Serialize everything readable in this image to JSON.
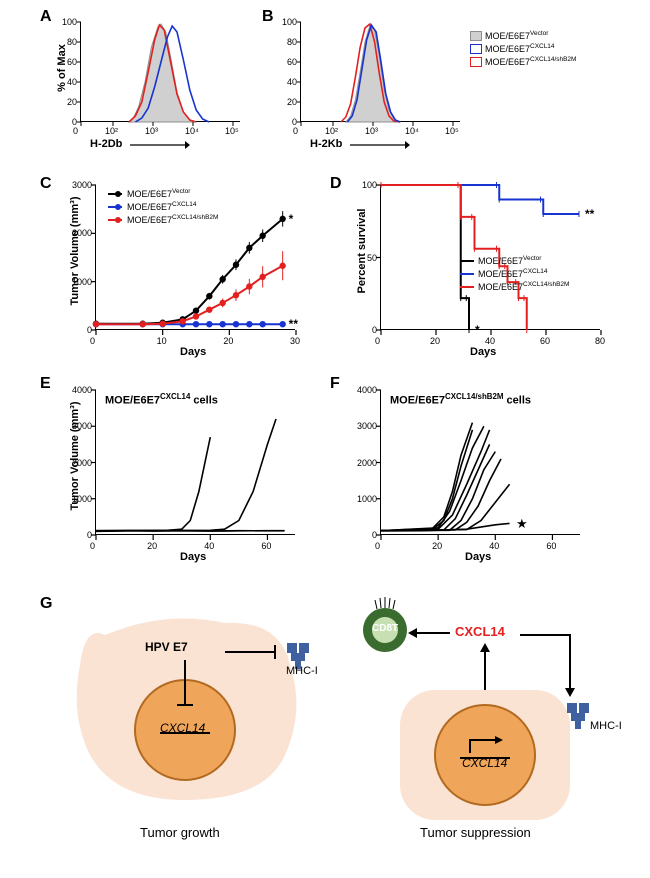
{
  "panels": {
    "A": {
      "label": "A",
      "x_label": "H-2Db",
      "y_label": "% of Max"
    },
    "B": {
      "label": "B",
      "x_label": "H-2Kb",
      "y_label": "% of Max"
    },
    "C": {
      "label": "C",
      "x_label": "Days",
      "y_label": "Tumor Volume (mm³)"
    },
    "D": {
      "label": "D",
      "x_label": "Days",
      "y_label": "Percent survival"
    },
    "E": {
      "label": "E",
      "x_label": "Days",
      "y_label": "Tumor Volume (mm³)",
      "title": "MOE/E6E7",
      "title_sup": "CXCL14",
      "title_suffix": " cells"
    },
    "F": {
      "label": "F",
      "x_label": "Days",
      "y_label": "Tumor Volume (mm³)",
      "title": "MOE/E6E7",
      "title_sup": "CXCL14/shB2M",
      "title_suffix": " cells"
    },
    "G": {
      "label": "G",
      "left_caption": "Tumor growth",
      "right_caption": "Tumor suppression"
    }
  },
  "legend": {
    "vector": {
      "text": "MOE/E6E7",
      "sup": "Vector",
      "color": "#a9a9a9",
      "line_color": "#000000"
    },
    "cxcl14": {
      "text": "MOE/E6E7",
      "sup": "CXCL14",
      "color": "#ffffff",
      "line_color": "#1733d1"
    },
    "shb2m": {
      "text": "MOE/E6E7",
      "sup": "CXCL14/shB2M",
      "color": "#ffffff",
      "line_color": "#e22020"
    }
  },
  "histogram": {
    "A": {
      "x_ticks": [
        "0",
        "10²",
        "10³",
        "10⁴",
        "10⁵"
      ],
      "y_ticks": [
        0,
        20,
        40,
        60,
        80,
        100
      ],
      "curves": {
        "vector": {
          "fill": "#d0d0d0",
          "stroke": "#8e8e8e",
          "pts": [
            [
              0.3,
              0
            ],
            [
              0.33,
              5
            ],
            [
              0.36,
              15
            ],
            [
              0.4,
              40
            ],
            [
              0.44,
              75
            ],
            [
              0.48,
              95
            ],
            [
              0.5,
              98
            ],
            [
              0.53,
              90
            ],
            [
              0.56,
              65
            ],
            [
              0.6,
              30
            ],
            [
              0.64,
              10
            ],
            [
              0.68,
              2
            ],
            [
              0.72,
              0
            ]
          ]
        },
        "shb2m": {
          "stroke": "#e22020",
          "pts": [
            [
              0.3,
              0
            ],
            [
              0.34,
              6
            ],
            [
              0.38,
              20
            ],
            [
              0.42,
              50
            ],
            [
              0.46,
              82
            ],
            [
              0.49,
              97
            ],
            [
              0.52,
              92
            ],
            [
              0.56,
              60
            ],
            [
              0.6,
              28
            ],
            [
              0.64,
              10
            ],
            [
              0.68,
              2
            ],
            [
              0.72,
              0
            ]
          ]
        },
        "cxcl14": {
          "stroke": "#1733d1",
          "pts": [
            [
              0.34,
              0
            ],
            [
              0.38,
              4
            ],
            [
              0.42,
              14
            ],
            [
              0.46,
              35
            ],
            [
              0.5,
              60
            ],
            [
              0.54,
              85
            ],
            [
              0.57,
              96
            ],
            [
              0.6,
              90
            ],
            [
              0.64,
              62
            ],
            [
              0.68,
              32
            ],
            [
              0.72,
              12
            ],
            [
              0.76,
              3
            ],
            [
              0.8,
              0
            ]
          ]
        }
      }
    },
    "B": {
      "x_ticks": [
        "0",
        "10²",
        "10³",
        "10⁴",
        "10⁵"
      ],
      "y_ticks": [
        0,
        20,
        40,
        60,
        80,
        100
      ],
      "curves": {
        "vector": {
          "fill": "#d0d0d0",
          "stroke": "#8e8e8e",
          "pts": [
            [
              0.28,
              0
            ],
            [
              0.31,
              6
            ],
            [
              0.34,
              22
            ],
            [
              0.37,
              50
            ],
            [
              0.4,
              80
            ],
            [
              0.43,
              96
            ],
            [
              0.46,
              92
            ],
            [
              0.49,
              65
            ],
            [
              0.52,
              32
            ],
            [
              0.55,
              12
            ],
            [
              0.58,
              3
            ],
            [
              0.62,
              0
            ]
          ]
        },
        "shb2m": {
          "stroke": "#e22020",
          "pts": [
            [
              0.25,
              0
            ],
            [
              0.28,
              5
            ],
            [
              0.31,
              18
            ],
            [
              0.34,
              45
            ],
            [
              0.37,
              75
            ],
            [
              0.4,
              94
            ],
            [
              0.43,
              98
            ],
            [
              0.46,
              80
            ],
            [
              0.49,
              48
            ],
            [
              0.52,
              20
            ],
            [
              0.55,
              6
            ],
            [
              0.58,
              1
            ],
            [
              0.62,
              0
            ]
          ]
        },
        "cxcl14": {
          "stroke": "#1733d1",
          "pts": [
            [
              0.29,
              0
            ],
            [
              0.32,
              6
            ],
            [
              0.35,
              22
            ],
            [
              0.38,
              52
            ],
            [
              0.41,
              82
            ],
            [
              0.44,
              97
            ],
            [
              0.47,
              90
            ],
            [
              0.5,
              60
            ],
            [
              0.53,
              28
            ],
            [
              0.56,
              10
            ],
            [
              0.59,
              2
            ],
            [
              0.62,
              0
            ]
          ]
        }
      }
    }
  },
  "chartC": {
    "xlim": [
      0,
      30
    ],
    "ylim": [
      0,
      3000
    ],
    "x_ticks": [
      0,
      10,
      20,
      30
    ],
    "y_ticks": [
      0,
      1000,
      2000,
      3000
    ],
    "series": {
      "vector": {
        "color": "#000000",
        "pts": [
          [
            0,
            130
          ],
          [
            7,
            130
          ],
          [
            10,
            150
          ],
          [
            13,
            220
          ],
          [
            15,
            400
          ],
          [
            17,
            700
          ],
          [
            19,
            1050
          ],
          [
            21,
            1350
          ],
          [
            23,
            1700
          ],
          [
            25,
            1950
          ],
          [
            28,
            2300
          ]
        ],
        "err": [
          0,
          0,
          0,
          20,
          40,
          70,
          90,
          110,
          120,
          130,
          160
        ],
        "sig": "*"
      },
      "cxcl14": {
        "color": "#1733d1",
        "pts": [
          [
            0,
            120
          ],
          [
            7,
            120
          ],
          [
            10,
            120
          ],
          [
            13,
            120
          ],
          [
            15,
            120
          ],
          [
            17,
            120
          ],
          [
            19,
            120
          ],
          [
            21,
            120
          ],
          [
            23,
            120
          ],
          [
            25,
            120
          ],
          [
            28,
            120
          ]
        ],
        "err": [
          0,
          0,
          0,
          0,
          0,
          0,
          0,
          0,
          0,
          0,
          0
        ],
        "sig": "**"
      },
      "shb2m": {
        "color": "#e22020",
        "pts": [
          [
            0,
            120
          ],
          [
            7,
            120
          ],
          [
            10,
            130
          ],
          [
            13,
            180
          ],
          [
            15,
            280
          ],
          [
            17,
            420
          ],
          [
            19,
            560
          ],
          [
            21,
            720
          ],
          [
            23,
            900
          ],
          [
            25,
            1100
          ],
          [
            28,
            1330
          ]
        ],
        "err": [
          0,
          0,
          0,
          20,
          40,
          60,
          90,
          120,
          160,
          220,
          300
        ]
      }
    }
  },
  "chartD": {
    "xlim": [
      0,
      80
    ],
    "ylim": [
      0,
      100
    ],
    "x_ticks": [
      0,
      20,
      40,
      60,
      80
    ],
    "y_ticks": [
      0,
      50,
      100
    ],
    "series": {
      "vector": {
        "color": "#000000",
        "pts": [
          [
            0,
            100
          ],
          [
            28,
            100
          ],
          [
            29,
            22
          ],
          [
            31,
            22
          ],
          [
            32,
            0
          ]
        ],
        "sig": "*"
      },
      "cxcl14": {
        "color": "#1733d1",
        "pts": [
          [
            0,
            100
          ],
          [
            42,
            100
          ],
          [
            43,
            90
          ],
          [
            58,
            90
          ],
          [
            59,
            80
          ],
          [
            72,
            80
          ]
        ],
        "sig": "**"
      },
      "shb2m": {
        "color": "#e22020",
        "pts": [
          [
            0,
            100
          ],
          [
            28,
            100
          ],
          [
            29,
            78
          ],
          [
            33,
            78
          ],
          [
            34,
            56
          ],
          [
            42,
            56
          ],
          [
            43,
            44
          ],
          [
            45,
            44
          ],
          [
            46,
            33
          ],
          [
            49,
            33
          ],
          [
            50,
            22
          ],
          [
            52,
            22
          ],
          [
            53,
            0
          ]
        ]
      }
    }
  },
  "chartE": {
    "xlim": [
      0,
      70
    ],
    "ylim": [
      0,
      4000
    ],
    "x_ticks": [
      0,
      20,
      40,
      60
    ],
    "y_ticks": [
      0,
      1000,
      2000,
      3000,
      4000
    ],
    "lines": [
      [
        [
          0,
          120
        ],
        [
          25,
          130
        ],
        [
          30,
          160
        ],
        [
          33,
          400
        ],
        [
          36,
          1200
        ],
        [
          40,
          2700
        ]
      ],
      [
        [
          0,
          120
        ],
        [
          40,
          130
        ],
        [
          45,
          160
        ],
        [
          50,
          400
        ],
        [
          55,
          1200
        ],
        [
          60,
          2500
        ],
        [
          63,
          3200
        ]
      ],
      [
        [
          0,
          100
        ],
        [
          10,
          120
        ],
        [
          20,
          110
        ],
        [
          30,
          120
        ],
        [
          40,
          110
        ],
        [
          50,
          120
        ],
        [
          60,
          115
        ],
        [
          66,
          115
        ]
      ],
      [
        [
          0,
          100
        ],
        [
          15,
          115
        ],
        [
          30,
          115
        ],
        [
          45,
          110
        ],
        [
          60,
          120
        ],
        [
          66,
          120
        ]
      ]
    ]
  },
  "chartF": {
    "xlim": [
      0,
      70
    ],
    "ylim": [
      0,
      4000
    ],
    "x_ticks": [
      0,
      20,
      40,
      60
    ],
    "y_ticks": [
      0,
      1000,
      2000,
      3000,
      4000
    ],
    "lines": [
      [
        [
          0,
          120
        ],
        [
          18,
          150
        ],
        [
          22,
          400
        ],
        [
          25,
          1000
        ],
        [
          28,
          1900
        ],
        [
          32,
          2900
        ]
      ],
      [
        [
          0,
          120
        ],
        [
          18,
          180
        ],
        [
          22,
          500
        ],
        [
          25,
          1200
        ],
        [
          28,
          2200
        ],
        [
          32,
          3100
        ]
      ],
      [
        [
          0,
          120
        ],
        [
          20,
          200
        ],
        [
          24,
          650
        ],
        [
          28,
          1500
        ],
        [
          32,
          2400
        ],
        [
          36,
          3000
        ]
      ],
      [
        [
          0,
          120
        ],
        [
          20,
          160
        ],
        [
          25,
          550
        ],
        [
          30,
          1400
        ],
        [
          35,
          2300
        ],
        [
          38,
          2900
        ]
      ],
      [
        [
          0,
          120
        ],
        [
          22,
          140
        ],
        [
          26,
          450
        ],
        [
          30,
          1100
        ],
        [
          34,
          1800
        ],
        [
          38,
          2500
        ]
      ],
      [
        [
          0,
          120
        ],
        [
          24,
          130
        ],
        [
          28,
          400
        ],
        [
          32,
          1000
        ],
        [
          36,
          1800
        ],
        [
          40,
          2300
        ]
      ],
      [
        [
          0,
          120
        ],
        [
          26,
          140
        ],
        [
          30,
          350
        ],
        [
          34,
          800
        ],
        [
          38,
          1500
        ],
        [
          42,
          2100
        ]
      ],
      [
        [
          0,
          120
        ],
        [
          30,
          150
        ],
        [
          35,
          400
        ],
        [
          40,
          900
        ],
        [
          45,
          1400
        ]
      ],
      [
        [
          0,
          110
        ],
        [
          15,
          120
        ],
        [
          30,
          160
        ],
        [
          40,
          280
        ],
        [
          45,
          320
        ]
      ]
    ],
    "star": "★"
  },
  "diagram": {
    "hpv_e7": "HPV E7",
    "cxcl14_gene": "CXCL14",
    "mhc": "MHC-I",
    "cd8t": "CD8T",
    "cxcl14_prot": "CXCL14",
    "colors": {
      "cell_fill": "#fbe3d4",
      "nucleus_fill": "#f0a65a",
      "nucleus_stroke": "#b16a1f",
      "mhc": "#3f619f",
      "cd8_fill": "#3a6b2f",
      "cd8_inner": "#c6e0b4",
      "cxcl14_red": "#e22020"
    }
  }
}
